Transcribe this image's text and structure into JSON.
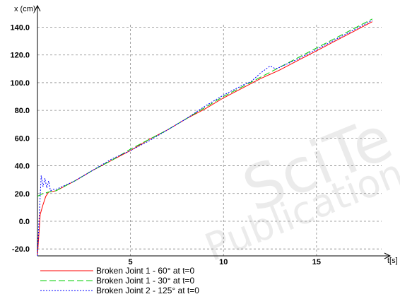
{
  "chart_data": {
    "type": "line",
    "xlabel": "t[s]",
    "ylabel": "x (cm)",
    "xlim": [
      0,
      18.5
    ],
    "ylim": [
      -25,
      152
    ],
    "x_ticks": [
      5,
      10,
      15
    ],
    "y_ticks": [
      -20,
      0,
      20,
      40,
      60,
      80,
      100,
      120,
      140
    ],
    "x_tick_labels": [
      "5",
      "10",
      "15"
    ],
    "y_tick_labels": [
      "-20.0",
      "0.0",
      "20.0",
      "40.0",
      "60.0",
      "80.0",
      "100.0",
      "120.0",
      "140.0"
    ],
    "grid": true,
    "legend_position": "bottom-left",
    "series": [
      {
        "name": "Broken Joint 1 - 60° at t=0",
        "color": "#ff0000",
        "dash": "solid",
        "x": [
          0,
          0.15,
          0.3,
          0.45,
          0.6,
          1,
          2,
          3,
          4,
          5,
          6,
          7,
          8,
          9,
          10,
          11,
          12,
          13,
          14,
          15,
          16,
          17,
          18
        ],
        "y": [
          -25,
          5,
          12,
          18,
          21,
          22,
          29,
          37,
          44,
          51,
          59,
          66,
          74,
          81,
          89,
          96,
          103,
          109,
          116,
          123,
          130,
          137,
          144
        ]
      },
      {
        "name": "Broken Joint 1 - 30° at t=0",
        "color": "#00cc00",
        "dash": "dashed",
        "x": [
          0,
          0.15,
          0.3,
          0.6,
          1,
          2,
          3,
          4,
          5,
          6,
          7,
          8,
          9,
          10,
          11,
          12,
          13,
          14,
          15,
          16,
          17,
          18
        ],
        "y": [
          18,
          19,
          20,
          21,
          22,
          29,
          37,
          44,
          52,
          59,
          66,
          74,
          82,
          90,
          97,
          104,
          111,
          118,
          125,
          132,
          139,
          146
        ]
      },
      {
        "name": "Broken Joint 2 - 125° at t=0",
        "color": "#0000ff",
        "dash": "dotted",
        "x": [
          0,
          0.1,
          0.2,
          0.3,
          0.4,
          0.5,
          0.6,
          0.7,
          0.85,
          1,
          2,
          3,
          4,
          5,
          6,
          7,
          8,
          9,
          10,
          11,
          11.5,
          12,
          12.5,
          12.8,
          13,
          14,
          15,
          16,
          17,
          18
        ],
        "y": [
          -25,
          5,
          33,
          25,
          31,
          24,
          29,
          22,
          23,
          23,
          29,
          37,
          45,
          51,
          58,
          66,
          74,
          83,
          91,
          98,
          101,
          107,
          112,
          110,
          111,
          117,
          124,
          131,
          138,
          145
        ]
      }
    ]
  }
}
